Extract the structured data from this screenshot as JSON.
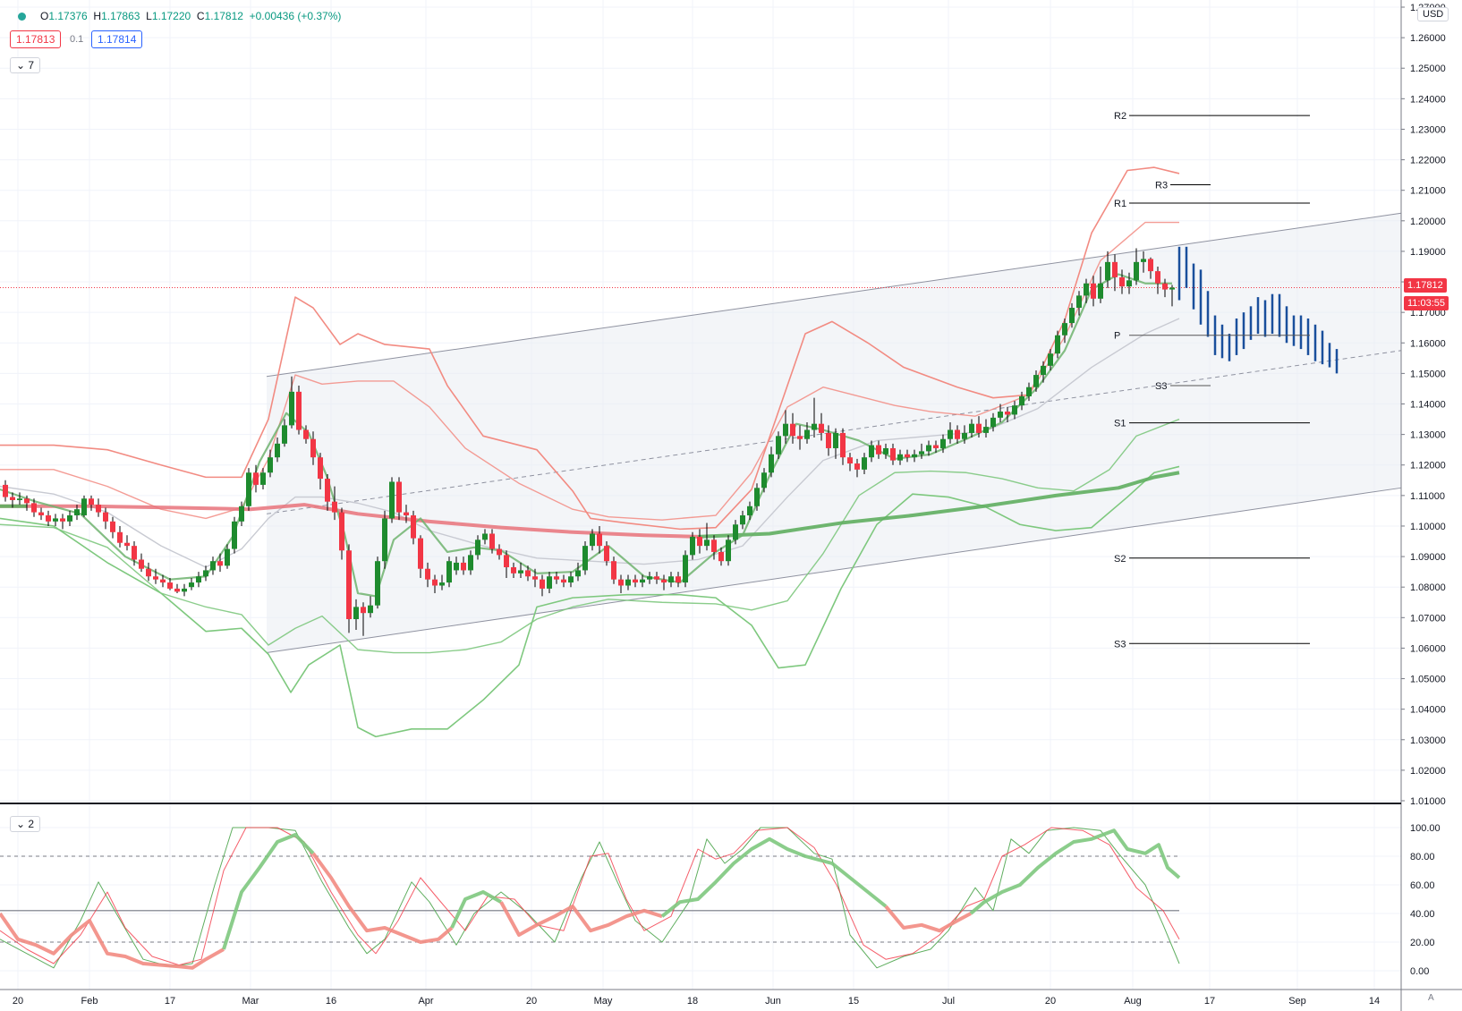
{
  "header": {
    "open_label": "O",
    "open": "1.17376",
    "high_label": "H",
    "high": "1.17863",
    "low_label": "L",
    "low": "1.17220",
    "close_label": "C",
    "close": "1.17812",
    "change": "+0.00436 (+0.37%)",
    "bid": "1.17813",
    "spread": "0.1",
    "ask": "1.17814"
  },
  "panes": {
    "main_collapse": "7",
    "osc_collapse": "2"
  },
  "currency": "USD",
  "price_label": {
    "price": "1.17812",
    "countdown": "11:03:55"
  },
  "auto_button": "A",
  "colors": {
    "up": "#1e8b2e",
    "down": "#f23645",
    "bb_upper": "#f28b82",
    "bb_lower": "#7ec87e",
    "forecast": "#1a4f9c",
    "ma_long": "#e8727a",
    "ma_long_up": "#5fae5f"
  },
  "chart_data": {
    "type": "candlestick",
    "y_axis": {
      "min": 1.01,
      "max": 1.27,
      "step": 0.01
    },
    "x_ticks": [
      "20",
      "Feb",
      "17",
      "Mar",
      "16",
      "Apr",
      "20",
      "May",
      "18",
      "Jun",
      "15",
      "Jul",
      "20",
      "Aug",
      "17",
      "Sep",
      "14"
    ],
    "pivots": [
      {
        "label": "R2",
        "value": 1.2345
      },
      {
        "label": "R3",
        "value": 1.2118
      },
      {
        "label": "R1",
        "value": 1.2058
      },
      {
        "label": "P",
        "value": 1.1625
      },
      {
        "label": "S3",
        "value": 1.146
      },
      {
        "label": "S1",
        "value": 1.1338
      },
      {
        "label": "S2",
        "value": 1.0895
      },
      {
        "label": "S3",
        "value": 1.0615
      }
    ],
    "last_price": 1.17812,
    "oscillator": {
      "y_ticks": [
        "100.00",
        "80.00",
        "60.00",
        "40.00",
        "20.00",
        "0.00"
      ],
      "levels": [
        80,
        20,
        42
      ]
    }
  }
}
